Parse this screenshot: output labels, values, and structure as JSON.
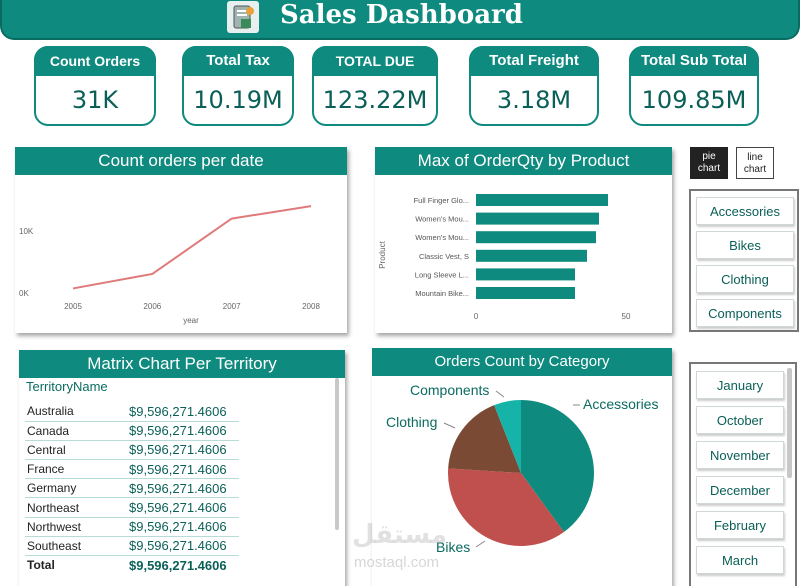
{
  "header": {
    "title": "Sales Dashboard",
    "logo_icon": "sales-report-icon"
  },
  "kpis": [
    {
      "label": "Count Orders",
      "value": "31K"
    },
    {
      "label": "Total Tax",
      "value": "10.19M"
    },
    {
      "label": "TOTAL DUE",
      "value": "123.22M"
    },
    {
      "label": "Total Freight",
      "value": "3.18M"
    },
    {
      "label": "Total Sub Total",
      "value": "109.85M"
    }
  ],
  "count_orders_panel": {
    "title": "Count orders per date"
  },
  "qty_panel": {
    "title": "Max of OrderQty by Product"
  },
  "matrix_panel": {
    "title": "Matrix Chart Per Territory",
    "column_header": "TerritoryName",
    "rows": [
      {
        "name": "Australia",
        "value": "$9,596,271.4606"
      },
      {
        "name": "Canada",
        "value": "$9,596,271.4606"
      },
      {
        "name": "Central",
        "value": "$9,596,271.4606"
      },
      {
        "name": "France",
        "value": "$9,596,271.4606"
      },
      {
        "name": "Germany",
        "value": "$9,596,271.4606"
      },
      {
        "name": "Northeast",
        "value": "$9,596,271.4606"
      },
      {
        "name": "Northwest",
        "value": "$9,596,271.4606"
      },
      {
        "name": "Southeast",
        "value": "$9,596,271.4606"
      }
    ],
    "total": {
      "name": "Total",
      "value": "$9,596,271.4606"
    }
  },
  "pie_panel": {
    "title": "Orders Count by Category"
  },
  "toggles": {
    "pie": "pie chart",
    "line": "line chart"
  },
  "category_slicer": [
    "Accessories",
    "Bikes",
    "Clothing",
    "Components"
  ],
  "month_slicer": [
    "January",
    "October",
    "November",
    "December",
    "February",
    "March"
  ],
  "watermark": "mostaql.com",
  "colors": {
    "teal": "#0e8a7e",
    "line": "#e07a7a",
    "bikes": "#c0504d",
    "clothing": "#7b4a35",
    "components": "#16b3a8",
    "accessories": "#0e8a7e"
  },
  "chart_data": [
    {
      "type": "line",
      "title": "Count orders per date",
      "x": [
        "2005",
        "2006",
        "2007",
        "2008"
      ],
      "values": [
        1300,
        3500,
        11900,
        13800
      ],
      "xlabel": "year",
      "ylabel": "",
      "yticks": [
        "0K",
        "10K"
      ],
      "ylim": [
        0,
        17000
      ]
    },
    {
      "type": "bar",
      "orientation": "horizontal",
      "title": "Max of OrderQty by Product",
      "categories": [
        "Full Finger Glo...",
        "Women's Mou...",
        "Women's Mou...",
        "Classic Vest, S",
        "Long Sleeve L...",
        "Mountain Bike..."
      ],
      "values": [
        44,
        41,
        40,
        37,
        33,
        33
      ],
      "xlabel": "",
      "ylabel": "Product",
      "xticks": [
        "0",
        "50"
      ],
      "xlim": [
        0,
        50
      ]
    },
    {
      "type": "pie",
      "title": "Orders Count by Category",
      "categories": [
        "Accessories",
        "Bikes",
        "Clothing",
        "Components"
      ],
      "values": [
        40,
        36,
        18,
        6
      ]
    }
  ]
}
